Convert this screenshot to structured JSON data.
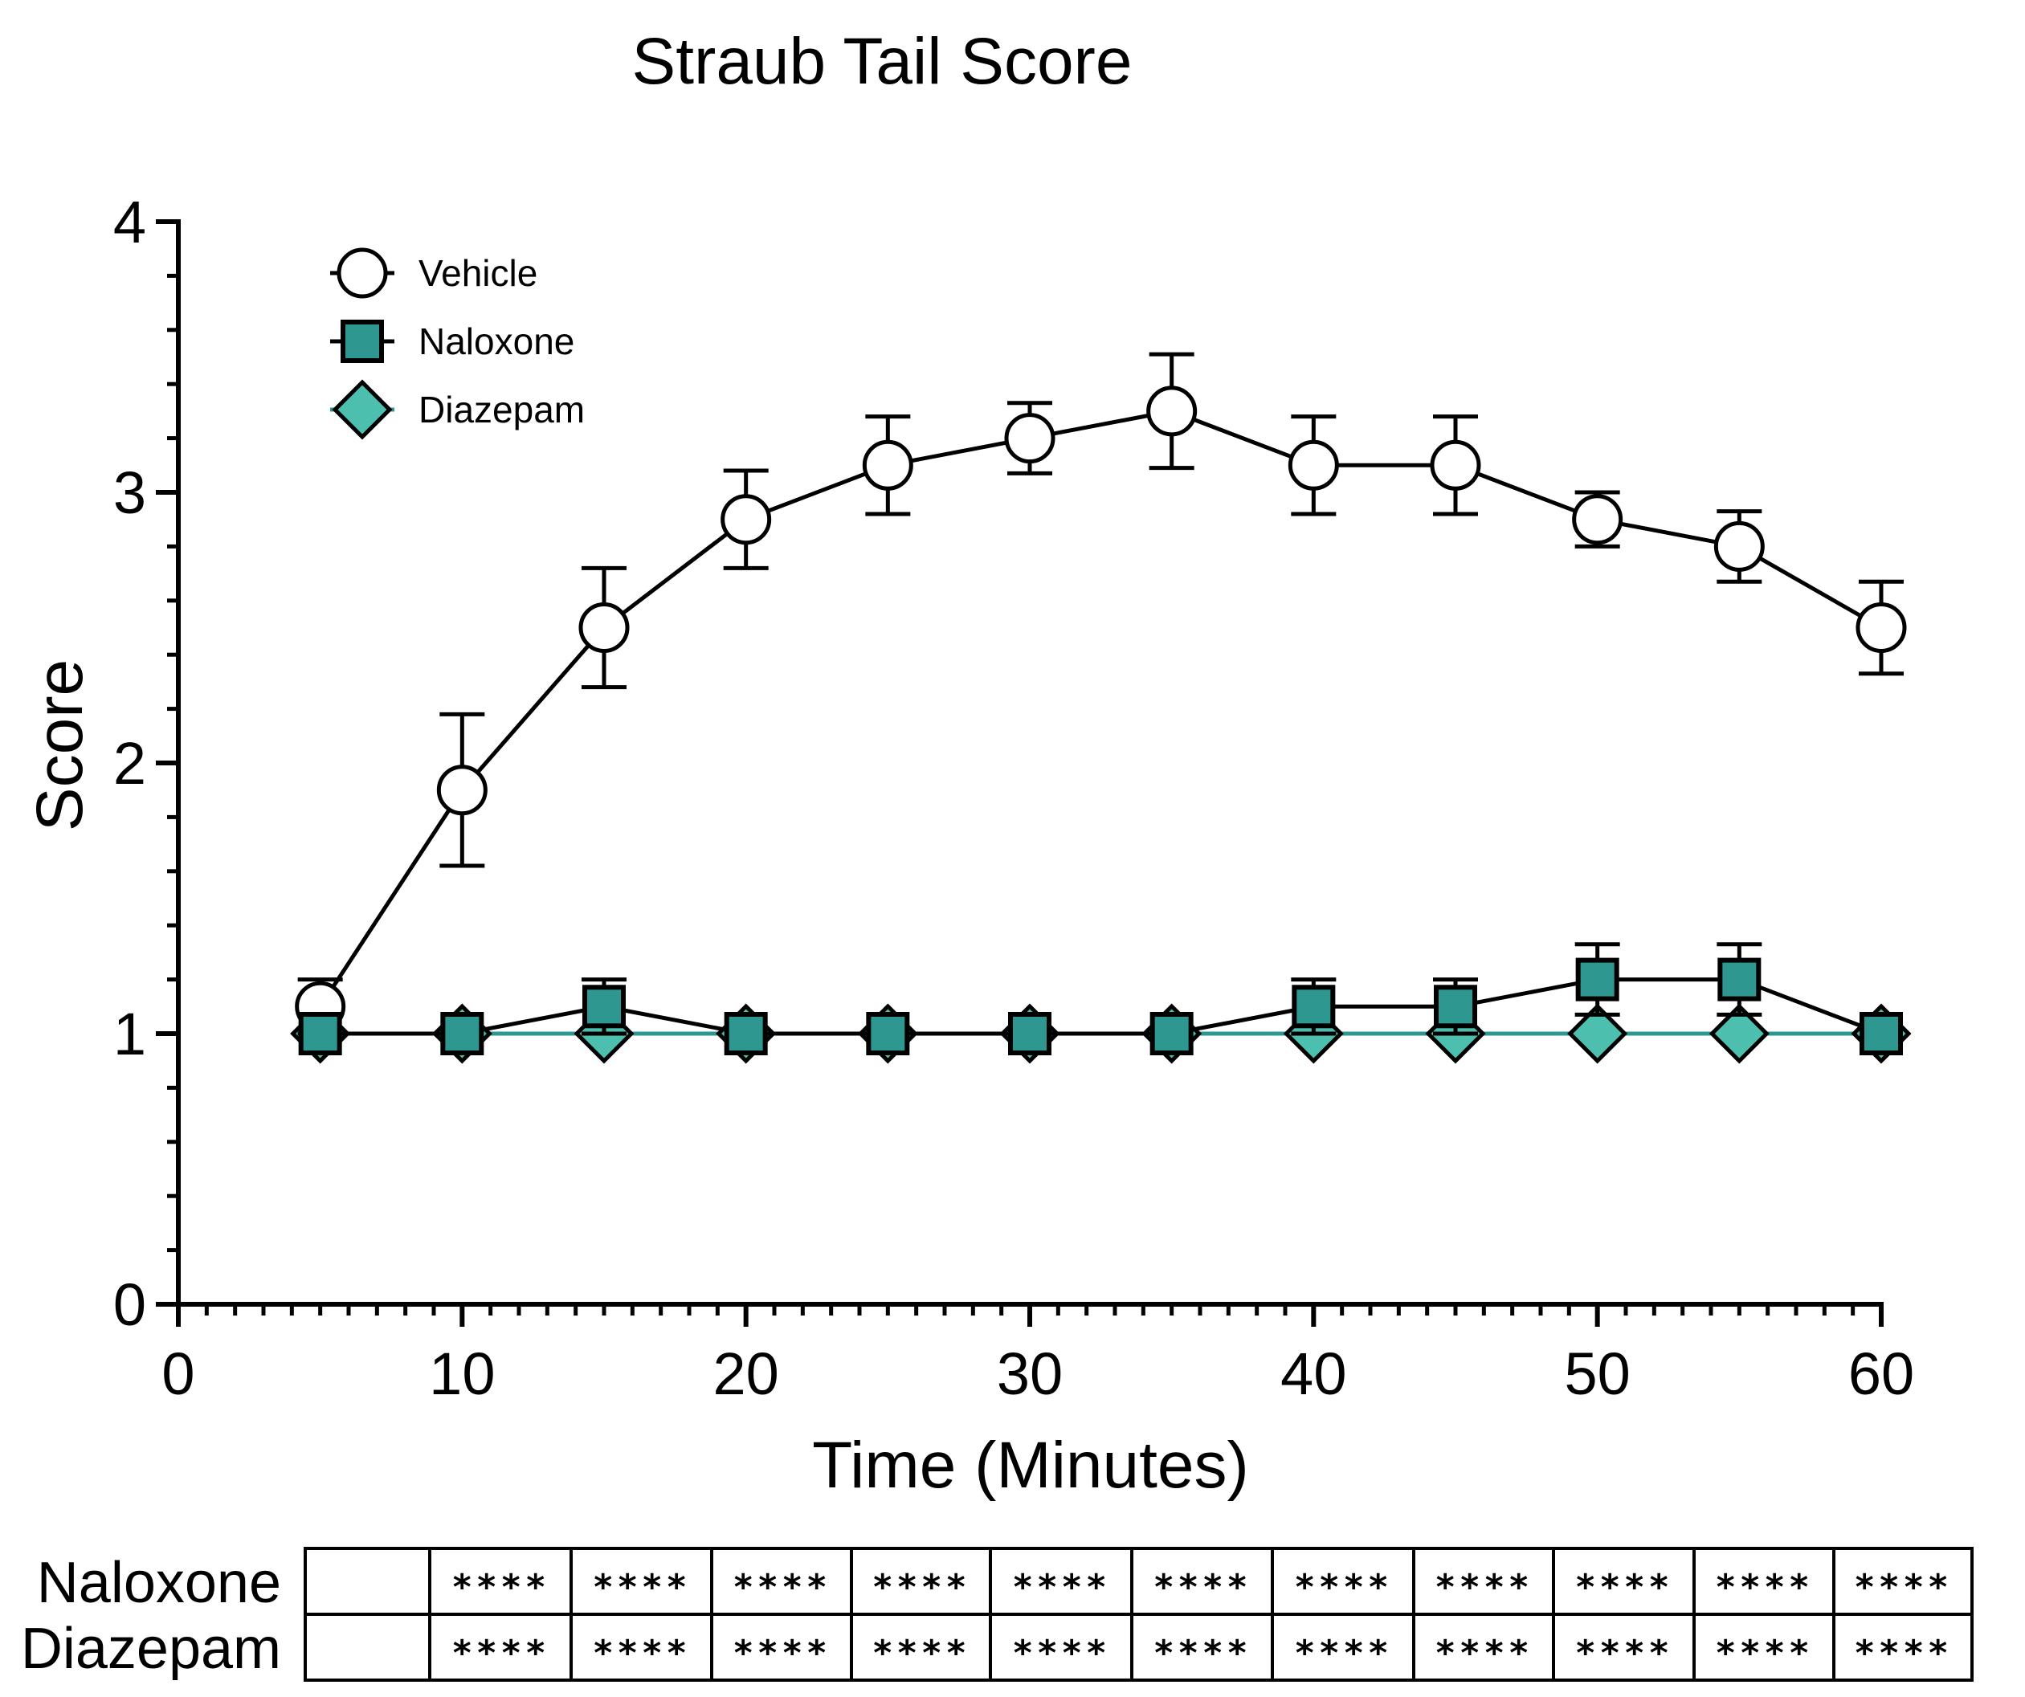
{
  "chart_data": {
    "type": "line",
    "title": "Straub Tail Score",
    "xlabel": "Time (Minutes)",
    "ylabel": "Score",
    "xlim": [
      0,
      60
    ],
    "ylim": [
      0,
      4
    ],
    "x_major_ticks": [
      0,
      10,
      20,
      30,
      40,
      50,
      60
    ],
    "y_major_ticks": [
      0,
      1,
      2,
      3,
      4
    ],
    "legend_position": "top-left",
    "x": [
      5,
      10,
      15,
      20,
      25,
      30,
      35,
      40,
      45,
      50,
      55,
      60
    ],
    "series": [
      {
        "name": "Vehicle",
        "marker": "open-circle",
        "color": "#000000",
        "fill": "#ffffff",
        "line_color": "#000000",
        "values": [
          1.1,
          1.9,
          2.5,
          2.9,
          3.1,
          3.2,
          3.3,
          3.1,
          3.1,
          2.9,
          2.8,
          2.5
        ],
        "error": [
          0.1,
          0.28,
          0.22,
          0.18,
          0.18,
          0.13,
          0.21,
          0.18,
          0.18,
          0.1,
          0.13,
          0.17
        ]
      },
      {
        "name": "Naloxone",
        "marker": "square",
        "color": "#000000",
        "fill": "#2e978f",
        "line_color": "#000000",
        "values": [
          1.0,
          1.0,
          1.1,
          1.0,
          1.0,
          1.0,
          1.0,
          1.1,
          1.1,
          1.2,
          1.2,
          1.0
        ],
        "error": [
          0,
          0,
          0.1,
          0,
          0,
          0,
          0,
          0.1,
          0.1,
          0.13,
          0.13,
          0
        ]
      },
      {
        "name": "Diazepam",
        "marker": "diamond",
        "color": "#000000",
        "fill": "#4dbfaf",
        "line_color": "#2e978f",
        "values": [
          1.0,
          1.0,
          1.0,
          1.0,
          1.0,
          1.0,
          1.0,
          1.0,
          1.0,
          1.0,
          1.0,
          1.0
        ],
        "error": [
          0,
          0,
          0,
          0,
          0,
          0,
          0,
          0,
          0,
          0,
          0,
          0
        ]
      }
    ],
    "significance_table": {
      "rows": [
        {
          "label": "Naloxone",
          "cells": [
            "",
            "****",
            "****",
            "****",
            "****",
            "****",
            "****",
            "****",
            "****",
            "****",
            "****",
            "****"
          ]
        },
        {
          "label": "Diazepam",
          "cells": [
            "",
            "****",
            "****",
            "****",
            "****",
            "****",
            "****",
            "****",
            "****",
            "****",
            "****",
            "****"
          ]
        }
      ]
    }
  }
}
